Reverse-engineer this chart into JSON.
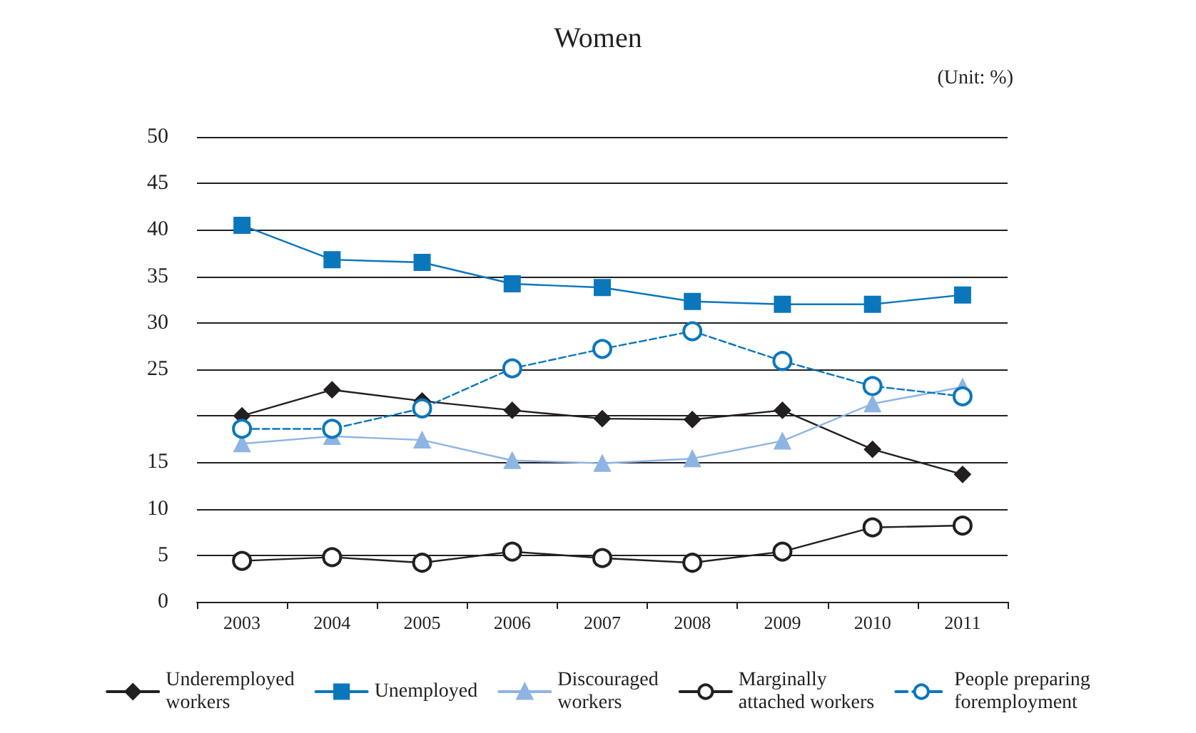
{
  "chart_data": {
    "type": "line",
    "title": "Women",
    "annotations": [
      "(Unit: %)"
    ],
    "categories": [
      "2003",
      "2004",
      "2005",
      "2006",
      "2007",
      "2008",
      "2009",
      "2010",
      "2011"
    ],
    "series": [
      {
        "name": "Underemployed\nworkers",
        "color": "#231f20",
        "marker": "diamond",
        "line_style": "solid",
        "values": [
          20.0,
          22.8,
          21.6,
          20.6,
          19.7,
          19.6,
          20.6,
          16.4,
          13.7
        ]
      },
      {
        "name": "Unemployed",
        "color": "#0a77bd",
        "marker": "square",
        "line_style": "solid",
        "values": [
          40.5,
          36.8,
          36.5,
          34.2,
          33.8,
          32.3,
          32.0,
          32.0,
          33.0
        ]
      },
      {
        "name": "Discouraged\nworkers",
        "color": "#8eb4e3",
        "marker": "triangle",
        "line_style": "solid",
        "values": [
          17.0,
          17.8,
          17.4,
          15.2,
          14.9,
          15.4,
          17.3,
          21.3,
          23.1
        ]
      },
      {
        "name": "Marginally\nattached workers",
        "color": "#231f20",
        "marker": "circle",
        "line_style": "solid",
        "values": [
          4.4,
          4.8,
          4.2,
          5.4,
          4.7,
          4.2,
          5.4,
          8.0,
          8.2
        ]
      },
      {
        "name": "People preparing\nforemployment",
        "color": "#0a77bd",
        "marker": "circle",
        "line_style": "dashed",
        "values": [
          18.6,
          18.6,
          20.8,
          25.1,
          27.2,
          29.1,
          25.9,
          23.2,
          22.1
        ]
      }
    ],
    "ylim": [
      0,
      50
    ],
    "yticks": [
      0,
      5,
      10,
      15,
      {
        "value": 20,
        "label": null
      },
      25,
      30,
      35,
      40,
      45,
      50
    ],
    "grid": "y",
    "legend": "bottom"
  }
}
